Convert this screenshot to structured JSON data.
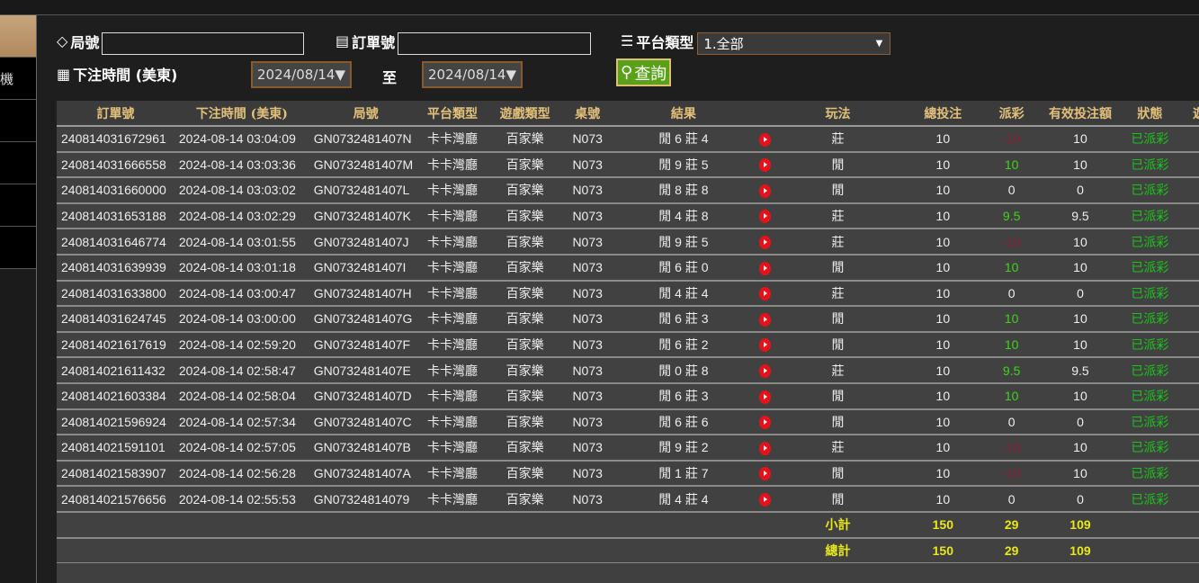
{
  "sidebar": {
    "items": [
      {
        "label": ""
      },
      {
        "label": "機"
      },
      {
        "label": ""
      },
      {
        "label": ""
      },
      {
        "label": ""
      },
      {
        "label": ""
      }
    ]
  },
  "filters": {
    "round_label": "局號",
    "round_value": "",
    "order_label": "訂單號",
    "order_value": "",
    "platform_label": "平台類型",
    "platform_selected": "1.全部",
    "time_label": "下注時間 (美東)",
    "date_from": "2024/08/14▼",
    "to_label": "至",
    "date_to": "2024/08/14▼",
    "query_label": "查詢"
  },
  "table": {
    "headers": [
      "訂單號",
      "下注時間 (美東)",
      "局號",
      "平台類型",
      "遊戲類型",
      "桌號",
      "結果",
      "",
      "玩法",
      "總投注",
      "派彩",
      "有效投注額",
      "狀態",
      "遊"
    ],
    "rows": [
      [
        "240814031672961",
        "2024-08-14 03:04:09",
        "GN0732481407N",
        "卡卡灣廳",
        "百家樂",
        "N073",
        "閒 6 莊 4",
        "莊",
        "10",
        "-10",
        "10",
        "已派彩"
      ],
      [
        "240814031666558",
        "2024-08-14 03:03:36",
        "GN0732481407M",
        "卡卡灣廳",
        "百家樂",
        "N073",
        "閒 9 莊 5",
        "閒",
        "10",
        "10",
        "10",
        "已派彩"
      ],
      [
        "240814031660000",
        "2024-08-14 03:03:02",
        "GN0732481407L",
        "卡卡灣廳",
        "百家樂",
        "N073",
        "閒 8 莊 8",
        "閒",
        "10",
        "0",
        "0",
        "已派彩"
      ],
      [
        "240814031653188",
        "2024-08-14 03:02:29",
        "GN0732481407K",
        "卡卡灣廳",
        "百家樂",
        "N073",
        "閒 4 莊 8",
        "莊",
        "10",
        "9.5",
        "9.5",
        "已派彩"
      ],
      [
        "240814031646774",
        "2024-08-14 03:01:55",
        "GN0732481407J",
        "卡卡灣廳",
        "百家樂",
        "N073",
        "閒 9 莊 5",
        "莊",
        "10",
        "-10",
        "10",
        "已派彩"
      ],
      [
        "240814031639939",
        "2024-08-14 03:01:18",
        "GN0732481407I",
        "卡卡灣廳",
        "百家樂",
        "N073",
        "閒 6 莊 0",
        "閒",
        "10",
        "10",
        "10",
        "已派彩"
      ],
      [
        "240814031633800",
        "2024-08-14 03:00:47",
        "GN0732481407H",
        "卡卡灣廳",
        "百家樂",
        "N073",
        "閒 4 莊 4",
        "莊",
        "10",
        "0",
        "0",
        "已派彩"
      ],
      [
        "240814031624745",
        "2024-08-14 03:00:00",
        "GN0732481407G",
        "卡卡灣廳",
        "百家樂",
        "N073",
        "閒 6 莊 3",
        "閒",
        "10",
        "10",
        "10",
        "已派彩"
      ],
      [
        "240814021617619",
        "2024-08-14 02:59:20",
        "GN0732481407F",
        "卡卡灣廳",
        "百家樂",
        "N073",
        "閒 6 莊 2",
        "閒",
        "10",
        "10",
        "10",
        "已派彩"
      ],
      [
        "240814021611432",
        "2024-08-14 02:58:47",
        "GN0732481407E",
        "卡卡灣廳",
        "百家樂",
        "N073",
        "閒 0 莊 8",
        "莊",
        "10",
        "9.5",
        "9.5",
        "已派彩"
      ],
      [
        "240814021603384",
        "2024-08-14 02:58:04",
        "GN0732481407D",
        "卡卡灣廳",
        "百家樂",
        "N073",
        "閒 6 莊 3",
        "閒",
        "10",
        "10",
        "10",
        "已派彩"
      ],
      [
        "240814021596924",
        "2024-08-14 02:57:34",
        "GN0732481407C",
        "卡卡灣廳",
        "百家樂",
        "N073",
        "閒 6 莊 6",
        "閒",
        "10",
        "0",
        "0",
        "已派彩"
      ],
      [
        "240814021591101",
        "2024-08-14 02:57:05",
        "GN0732481407B",
        "卡卡灣廳",
        "百家樂",
        "N073",
        "閒 9 莊 2",
        "莊",
        "10",
        "-10",
        "10",
        "已派彩"
      ],
      [
        "240814021583907",
        "2024-08-14 02:56:28",
        "GN0732481407A",
        "卡卡灣廳",
        "百家樂",
        "N073",
        "閒 1 莊 7",
        "閒",
        "10",
        "-10",
        "10",
        "已派彩"
      ],
      [
        "240814021576656",
        "2024-08-14 02:55:53",
        "GN07324814079",
        "卡卡灣廳",
        "百家樂",
        "N073",
        "閒 4 莊 4",
        "閒",
        "10",
        "0",
        "0",
        "已派彩"
      ]
    ],
    "subtotal": {
      "label": "小計",
      "total_bet": "150",
      "payout": "29",
      "valid_bet": "109"
    },
    "grand_total": {
      "label": "總計",
      "total_bet": "150",
      "payout": "29",
      "valid_bet": "109"
    }
  },
  "colors": {
    "accent": "#e2c07a",
    "negative": "#8c1f35",
    "positive": "#3fd41a",
    "status": "#1bc41b",
    "total": "#e8e81a",
    "query": "#5aa11a"
  }
}
